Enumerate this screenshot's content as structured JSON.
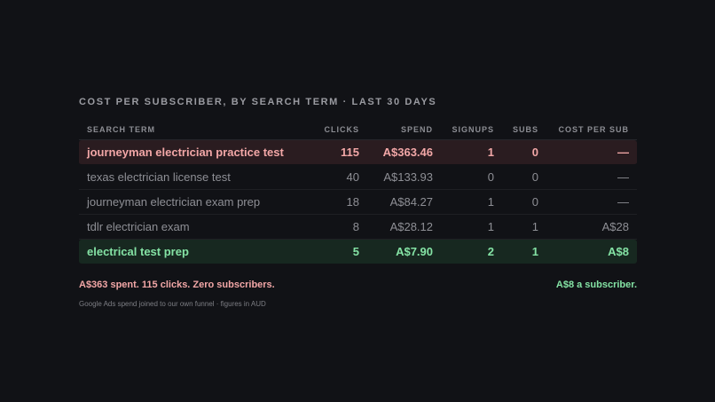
{
  "title": "COST PER SUBSCRIBER, BY SEARCH TERM · LAST 30 DAYS",
  "columns": {
    "term": "SEARCH TERM",
    "clicks": "CLICKS",
    "spend": "SPEND",
    "signups": "SIGNUPS",
    "subs": "SUBS",
    "cost_per_sub": "COST PER SUB"
  },
  "rows": [
    {
      "term": "journeyman electrician practice test",
      "clicks": "115",
      "spend": "A$363.46",
      "signups": "1",
      "subs": "0",
      "cost_per_sub": "—"
    },
    {
      "term": "texas electrician license test",
      "clicks": "40",
      "spend": "A$133.93",
      "signups": "0",
      "subs": "0",
      "cost_per_sub": "—"
    },
    {
      "term": "journeyman electrician exam prep",
      "clicks": "18",
      "spend": "A$84.27",
      "signups": "1",
      "subs": "0",
      "cost_per_sub": "—"
    },
    {
      "term": "tdlr electrician exam",
      "clicks": "8",
      "spend": "A$28.12",
      "signups": "1",
      "subs": "1",
      "cost_per_sub": "A$28"
    },
    {
      "term": "electrical test prep",
      "clicks": "5",
      "spend": "A$7.90",
      "signups": "2",
      "subs": "1",
      "cost_per_sub": "A$8"
    }
  ],
  "summary": {
    "bad": "A$363 spent. 115 clicks. Zero subscribers.",
    "good": "A$8 a subscriber."
  },
  "footnote": "Google Ads spend joined to our own funnel · figures in AUD",
  "colors": {
    "background": "#111216",
    "bad_text": "#f2a7a7",
    "bad_row": "#2a1c20",
    "good_text": "#84e2a4",
    "good_row": "#172820"
  }
}
